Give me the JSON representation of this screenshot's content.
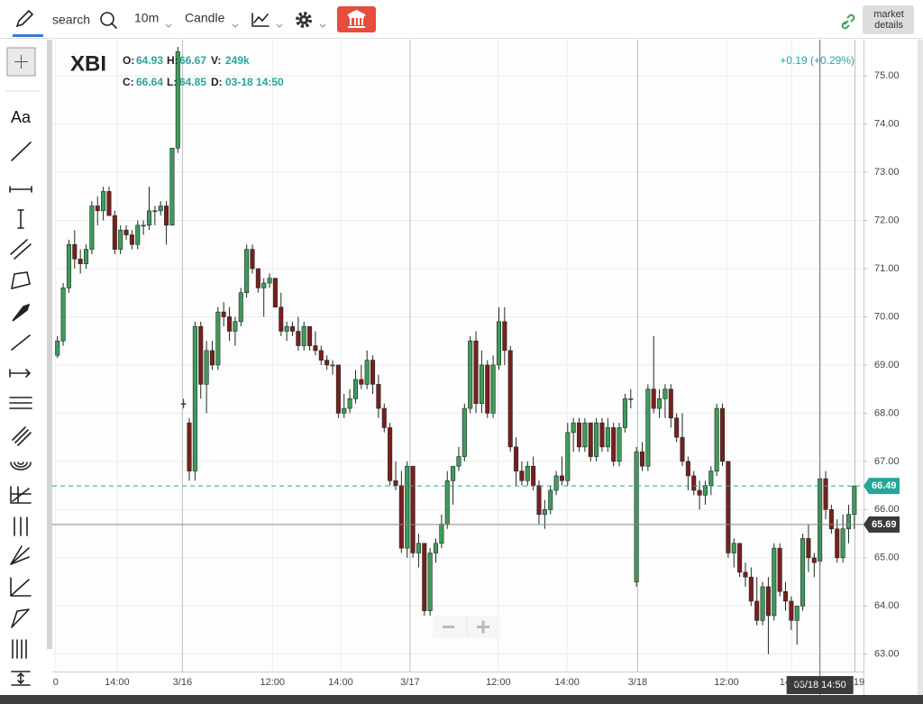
{
  "toolbar": {
    "search": "search",
    "interval": "10m",
    "chart_style": "Candle",
    "market_details": [
      "market",
      "details"
    ],
    "text_tool": "Aa"
  },
  "chart_data": {
    "type": "candlestick",
    "header": {
      "symbol": "XBI",
      "labels": {
        "open": "O:",
        "high": "H:",
        "volume": "V:",
        "close": "C:",
        "low": "L:",
        "date": "D:"
      },
      "open": 64.93,
      "high": 66.67,
      "volume": {
        "value": 249000,
        "label": "249k"
      },
      "close": 66.64,
      "low": 64.85,
      "date": "03-18 14:50"
    },
    "change": "+0.19 (+0.29%)",
    "colors": {
      "up": "#3f9a5c",
      "down": "#7b1e1e",
      "outline": "#1d2b20",
      "last": "#26a69a",
      "crosshair": "#3a3a3a"
    },
    "candles": [
      [
        69.2,
        69.6,
        69.15,
        69.5
      ],
      [
        69.5,
        70.7,
        69.4,
        70.6
      ],
      [
        70.6,
        71.6,
        70.5,
        71.5
      ],
      [
        71.5,
        71.8,
        71.0,
        71.2
      ],
      [
        71.2,
        71.4,
        70.9,
        71.1
      ],
      [
        71.1,
        71.5,
        71.0,
        71.4
      ],
      [
        71.4,
        72.4,
        71.3,
        72.3
      ],
      [
        72.3,
        72.5,
        71.9,
        72.2
      ],
      [
        72.2,
        72.7,
        72.0,
        72.6
      ],
      [
        72.6,
        72.7,
        72.1,
        72.1
      ],
      [
        72.1,
        72.2,
        71.3,
        71.4
      ],
      [
        71.4,
        71.9,
        71.3,
        71.8
      ],
      [
        71.8,
        71.9,
        71.6,
        71.7
      ],
      [
        71.7,
        71.8,
        71.4,
        71.5
      ],
      [
        71.5,
        72.0,
        71.4,
        71.9
      ],
      [
        71.9,
        72.0,
        71.7,
        71.9
      ],
      [
        71.9,
        72.7,
        71.8,
        72.2
      ],
      [
        72.2,
        72.3,
        71.9,
        72.2
      ],
      [
        72.2,
        72.4,
        72.1,
        72.3
      ],
      [
        72.3,
        72.4,
        71.5,
        71.9
      ],
      [
        71.9,
        73.5,
        71.9,
        73.5
      ],
      [
        73.5,
        75.6,
        73.4,
        75.5
      ],
      [
        68.2,
        68.3,
        68.1,
        68.2
      ],
      [
        67.8,
        67.9,
        66.6,
        66.8
      ],
      [
        66.8,
        69.9,
        66.6,
        69.8
      ],
      [
        69.8,
        69.9,
        68.3,
        68.6
      ],
      [
        68.6,
        69.5,
        68.0,
        69.3
      ],
      [
        69.3,
        69.5,
        68.9,
        69.0
      ],
      [
        69.0,
        70.2,
        68.9,
        70.1
      ],
      [
        70.1,
        70.3,
        69.8,
        70.0
      ],
      [
        70.0,
        70.2,
        69.5,
        69.7
      ],
      [
        69.7,
        70.0,
        69.4,
        69.9
      ],
      [
        69.9,
        70.6,
        69.8,
        70.5
      ],
      [
        70.5,
        71.5,
        70.4,
        71.4
      ],
      [
        71.4,
        71.5,
        70.9,
        71.0
      ],
      [
        71.0,
        71.0,
        70.5,
        70.6
      ],
      [
        70.6,
        70.8,
        70.0,
        70.7
      ],
      [
        70.7,
        70.9,
        70.6,
        70.8
      ],
      [
        70.8,
        70.8,
        70.2,
        70.2
      ],
      [
        70.2,
        70.5,
        69.6,
        69.7
      ],
      [
        69.7,
        69.9,
        69.5,
        69.8
      ],
      [
        69.8,
        69.9,
        69.6,
        69.7
      ],
      [
        69.7,
        70.0,
        69.3,
        69.4
      ],
      [
        69.4,
        69.9,
        69.3,
        69.8
      ],
      [
        69.8,
        69.8,
        69.3,
        69.4
      ],
      [
        69.4,
        69.7,
        69.2,
        69.3
      ],
      [
        69.3,
        69.4,
        69.0,
        69.1
      ],
      [
        69.1,
        69.2,
        68.9,
        69.0
      ],
      [
        69.0,
        69.1,
        68.8,
        69.0
      ],
      [
        69.0,
        69.0,
        67.9,
        68.0
      ],
      [
        68.0,
        68.4,
        67.9,
        68.1
      ],
      [
        68.1,
        68.5,
        68.0,
        68.3
      ],
      [
        68.3,
        68.9,
        68.2,
        68.7
      ],
      [
        68.7,
        69.0,
        68.5,
        68.6
      ],
      [
        68.6,
        69.3,
        68.5,
        69.1
      ],
      [
        69.1,
        69.2,
        68.4,
        68.6
      ],
      [
        68.6,
        68.8,
        67.9,
        68.1
      ],
      [
        68.1,
        68.2,
        67.6,
        67.7
      ],
      [
        67.7,
        67.8,
        66.5,
        66.6
      ],
      [
        66.6,
        67.0,
        66.4,
        66.5
      ],
      [
        66.5,
        66.8,
        65.1,
        65.2
      ],
      [
        65.2,
        67.0,
        65.0,
        66.9
      ],
      [
        66.9,
        66.9,
        65.0,
        65.1
      ],
      [
        65.1,
        65.5,
        64.8,
        65.3
      ],
      [
        65.3,
        65.3,
        63.8,
        63.9
      ],
      [
        63.9,
        65.2,
        63.8,
        65.1
      ],
      [
        65.1,
        65.4,
        64.9,
        65.3
      ],
      [
        65.3,
        65.9,
        65.2,
        65.7
      ],
      [
        65.7,
        66.8,
        65.6,
        66.6
      ],
      [
        66.6,
        66.9,
        66.1,
        66.9
      ],
      [
        66.9,
        67.3,
        66.8,
        67.1
      ],
      [
        67.1,
        68.2,
        67.0,
        68.1
      ],
      [
        68.1,
        69.6,
        68.0,
        69.5
      ],
      [
        69.5,
        69.7,
        68.0,
        68.2
      ],
      [
        68.2,
        69.3,
        68.0,
        69.0
      ],
      [
        69.0,
        69.1,
        67.9,
        68.0
      ],
      [
        68.0,
        69.2,
        67.9,
        69.0
      ],
      [
        69.0,
        70.2,
        68.9,
        69.9
      ],
      [
        69.9,
        70.2,
        69.0,
        69.3
      ],
      [
        69.3,
        69.4,
        67.2,
        67.3
      ],
      [
        67.3,
        67.5,
        66.5,
        66.8
      ],
      [
        66.8,
        67.0,
        66.5,
        66.6
      ],
      [
        66.6,
        67.0,
        66.5,
        66.9
      ],
      [
        66.9,
        67.1,
        66.4,
        66.5
      ],
      [
        66.5,
        66.6,
        65.7,
        65.9
      ],
      [
        65.9,
        66.2,
        65.6,
        66.0
      ],
      [
        66.0,
        66.5,
        65.9,
        66.4
      ],
      [
        66.4,
        66.8,
        66.3,
        66.7
      ],
      [
        66.7,
        67.1,
        66.5,
        66.6
      ],
      [
        66.6,
        67.8,
        66.5,
        67.6
      ],
      [
        67.6,
        67.9,
        67.2,
        67.8
      ],
      [
        67.8,
        67.9,
        67.2,
        67.3
      ],
      [
        67.3,
        67.9,
        67.2,
        67.8
      ],
      [
        67.8,
        67.8,
        67.0,
        67.1
      ],
      [
        67.1,
        67.9,
        67.0,
        67.8
      ],
      [
        67.8,
        67.9,
        67.2,
        67.3
      ],
      [
        67.3,
        67.9,
        67.2,
        67.7
      ],
      [
        67.7,
        67.8,
        66.9,
        67.0
      ],
      [
        67.0,
        67.8,
        66.9,
        67.7
      ],
      [
        67.7,
        68.4,
        67.6,
        68.3
      ],
      [
        68.3,
        68.5,
        68.1,
        68.3
      ],
      [
        64.5,
        67.3,
        64.4,
        67.2
      ],
      [
        67.2,
        67.4,
        66.8,
        66.9
      ],
      [
        66.9,
        68.6,
        66.8,
        68.5
      ],
      [
        68.5,
        69.6,
        68.0,
        68.1
      ],
      [
        68.1,
        68.5,
        67.9,
        68.3
      ],
      [
        68.3,
        68.6,
        67.9,
        68.5
      ],
      [
        68.5,
        68.6,
        67.7,
        67.9
      ],
      [
        67.9,
        68.0,
        67.4,
        67.5
      ],
      [
        67.5,
        68.0,
        66.9,
        67.0
      ],
      [
        67.0,
        67.1,
        66.4,
        66.7
      ],
      [
        66.7,
        66.8,
        66.3,
        66.4
      ],
      [
        66.4,
        66.6,
        66.0,
        66.3
      ],
      [
        66.3,
        66.6,
        66.1,
        66.5
      ],
      [
        66.5,
        66.9,
        66.3,
        66.8
      ],
      [
        66.8,
        68.2,
        66.7,
        68.1
      ],
      [
        68.1,
        68.2,
        66.9,
        67.0
      ],
      [
        67.0,
        67.0,
        65.0,
        65.1
      ],
      [
        65.1,
        65.4,
        64.8,
        65.3
      ],
      [
        65.3,
        65.3,
        64.6,
        64.7
      ],
      [
        64.7,
        64.9,
        64.4,
        64.6
      ],
      [
        64.6,
        64.8,
        64.0,
        64.1
      ],
      [
        64.1,
        64.6,
        63.6,
        63.7
      ],
      [
        63.7,
        64.5,
        63.6,
        64.4
      ],
      [
        64.4,
        64.6,
        63.0,
        63.8
      ],
      [
        63.8,
        65.3,
        63.7,
        65.2
      ],
      [
        65.2,
        65.3,
        64.2,
        64.3
      ],
      [
        64.3,
        64.5,
        63.9,
        64.1
      ],
      [
        64.1,
        64.2,
        63.5,
        63.7
      ],
      [
        63.7,
        64.0,
        63.2,
        64.0
      ],
      [
        64.0,
        65.5,
        63.9,
        65.4
      ],
      [
        65.4,
        65.7,
        64.7,
        65.0
      ],
      [
        65.0,
        65.1,
        64.6,
        64.9
      ],
      [
        64.93,
        66.67,
        64.85,
        66.64
      ],
      [
        66.64,
        66.8,
        65.8,
        66.0
      ],
      [
        66.0,
        66.1,
        65.5,
        65.6
      ],
      [
        65.6,
        65.8,
        64.9,
        65.0
      ],
      [
        65.0,
        65.9,
        64.9,
        65.6
      ],
      [
        65.6,
        66.1,
        65.3,
        65.9
      ],
      [
        65.9,
        66.5,
        65.6,
        66.49
      ]
    ],
    "last_price": 66.49,
    "crosshair": {
      "price": 65.69,
      "date": "03/18 14:50"
    },
    "xlim": [
      -0.9,
      140.6
    ],
    "xticks": [
      {
        "value": -0.3,
        "label": "0"
      },
      {
        "value": 10.4,
        "label": "14:00"
      },
      {
        "value": 21.8,
        "label": "3/16"
      },
      {
        "value": 37.5,
        "label": "12:00"
      },
      {
        "value": 49.4,
        "label": "14:00"
      },
      {
        "value": 61.5,
        "label": "3/17"
      },
      {
        "value": 76.9,
        "label": "12:00"
      },
      {
        "value": 88.9,
        "label": "14:00"
      },
      {
        "value": 101.2,
        "label": "3/18"
      },
      {
        "value": 116.7,
        "label": "12:00"
      },
      {
        "value": 128.1,
        "label": "14:00"
      },
      {
        "value": 139.1,
        "label": "3/19"
      }
    ],
    "ylim": [
      62.64,
      75.75
    ],
    "yticks": [
      {
        "value": 63,
        "label": "63.00"
      },
      {
        "value": 64,
        "label": "64.00"
      },
      {
        "value": 65,
        "label": "65.00"
      },
      {
        "value": 66,
        "label": "66.00"
      },
      {
        "value": 67,
        "label": "67.00"
      },
      {
        "value": 68,
        "label": "68.00"
      },
      {
        "value": 69,
        "label": "69.00"
      },
      {
        "value": 70,
        "label": "70.00"
      },
      {
        "value": 71,
        "label": "71.00"
      },
      {
        "value": 72,
        "label": "72.00"
      },
      {
        "value": 73,
        "label": "73.00"
      },
      {
        "value": 74,
        "label": "74.00"
      },
      {
        "value": 75,
        "label": "75.00"
      }
    ],
    "grid": true
  }
}
